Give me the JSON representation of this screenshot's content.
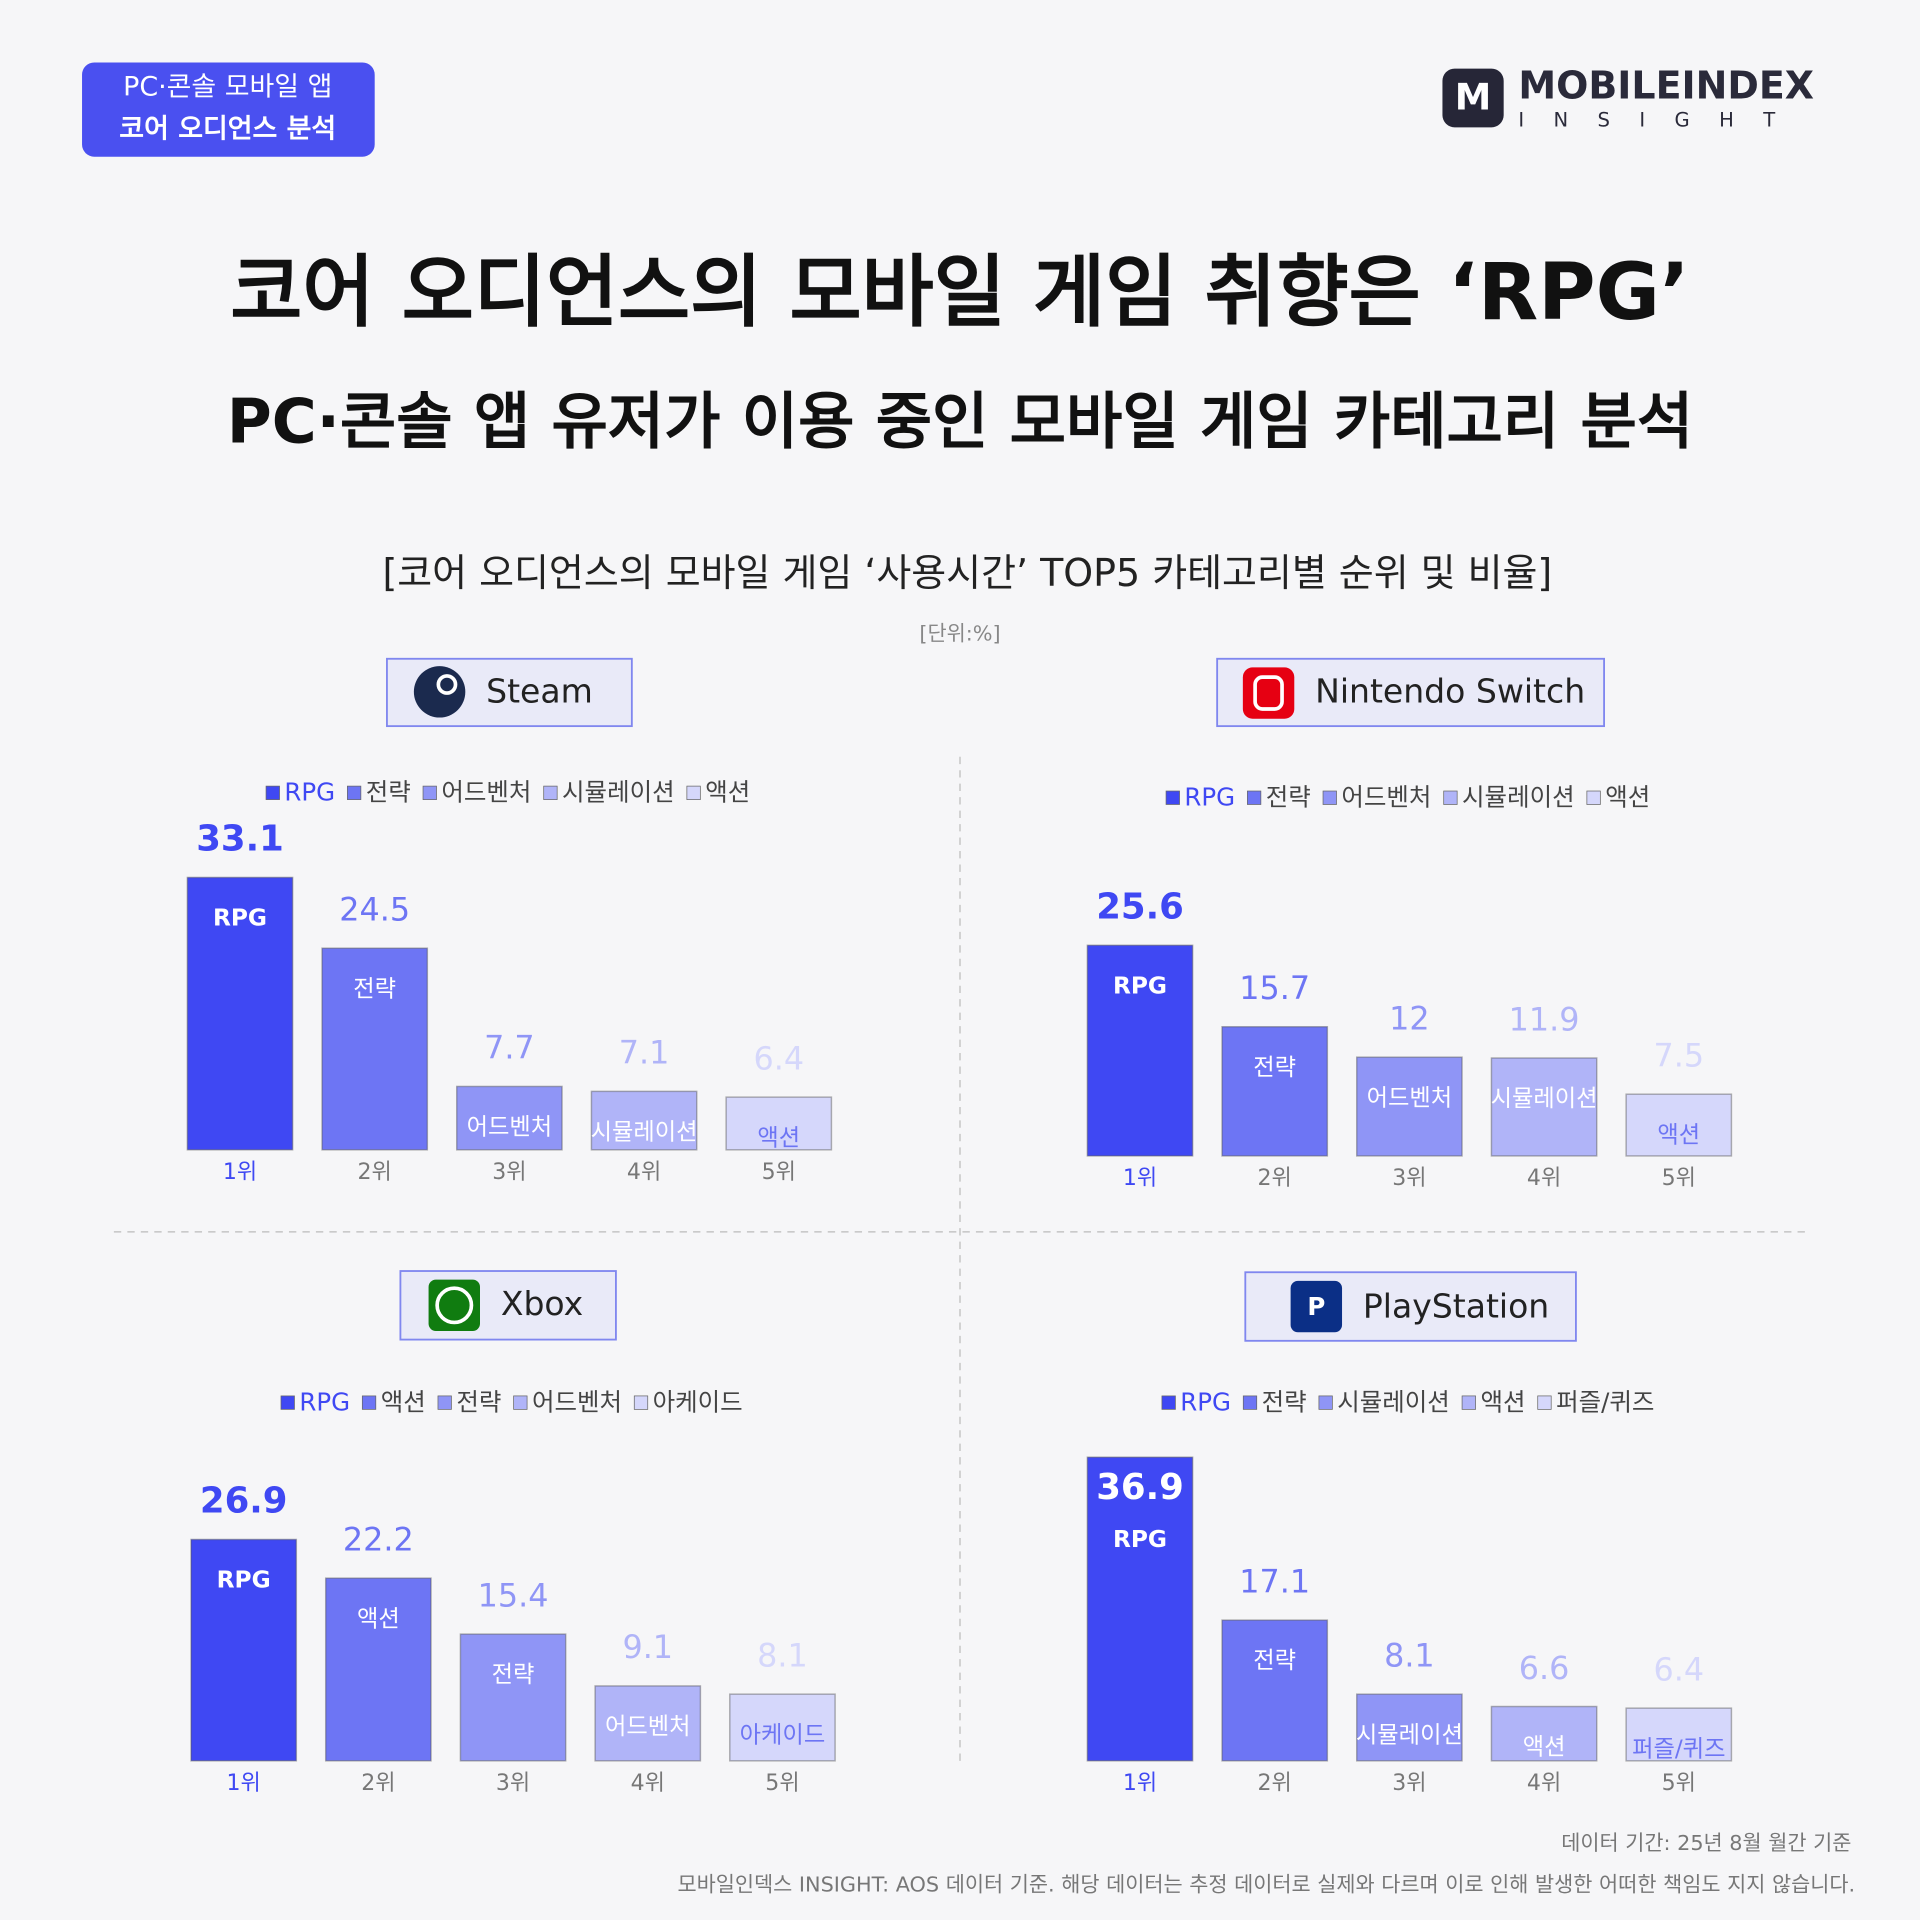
{
  "badge": [
    "PC·콘솔 모바일 앱",
    "코어 오디언스 분석"
  ],
  "logo": {
    "name": "MOBILEINDEX",
    "sub": "INSIGHT"
  },
  "title": "코어 오디언스의 모바일 게임 취향은 ‘RPG’",
  "subtitle": "PC·콘솔 앱 유저가 이용 중인 모바일 게임 카테고리 분석",
  "section_title": "[코어 오디언스의 모바일 게임 ‘사용시간’ TOP5 카테고리별 순위 및 비율]",
  "unit": "[단위:%]",
  "chart_data": [
    {
      "type": "bar",
      "title": "Steam",
      "categories": [
        "1위",
        "2위",
        "3위",
        "4위",
        "5위"
      ],
      "bar_labels": [
        "RPG",
        "전략",
        "어드벤처",
        "시뮬레이션",
        "액션"
      ],
      "values": [
        33.1,
        24.5,
        7.7,
        7.1,
        6.4
      ],
      "colors": [
        "#3f48f3",
        "#6d75f4",
        "#8f95f6",
        "#b0b4f8",
        "#d5d7fb"
      ]
    },
    {
      "type": "bar",
      "title": "Nintendo Switch",
      "categories": [
        "1위",
        "2위",
        "3위",
        "4위",
        "5위"
      ],
      "bar_labels": [
        "RPG",
        "전략",
        "어드벤처",
        "시뮬레이션",
        "액션"
      ],
      "values": [
        25.6,
        15.7,
        12,
        11.9,
        7.5
      ],
      "colors": [
        "#3f48f3",
        "#6d75f4",
        "#8f95f6",
        "#b0b4f8",
        "#d5d7fb"
      ]
    },
    {
      "type": "bar",
      "title": "Xbox",
      "categories": [
        "1위",
        "2위",
        "3위",
        "4위",
        "5위"
      ],
      "bar_labels": [
        "RPG",
        "액션",
        "전략",
        "어드벤처",
        "아케이드"
      ],
      "values": [
        26.9,
        22.2,
        15.4,
        9.1,
        8.1
      ],
      "colors": [
        "#3f48f3",
        "#6d75f4",
        "#8f95f6",
        "#b0b4f8",
        "#d5d7fb"
      ]
    },
    {
      "type": "bar",
      "title": "PlayStation",
      "categories": [
        "1위",
        "2위",
        "3위",
        "4위",
        "5위"
      ],
      "bar_labels": [
        "RPG",
        "전략",
        "시뮬레이션",
        "액션",
        "퍼즐/퀴즈"
      ],
      "values": [
        36.9,
        17.1,
        8.1,
        6.6,
        6.4
      ],
      "colors": [
        "#3f48f3",
        "#6d75f4",
        "#8f95f6",
        "#b0b4f8",
        "#d5d7fb"
      ]
    }
  ],
  "footer": [
    "데이터 기간: 25년 8월 월간 기준",
    "모바일인덱스 INSIGHT: AOS 데이터 기준. 해당 데이터는 추정 데이터로 실제와 다르며 이로 인해 발생한 어떠한 책임도 지지 않습니다."
  ]
}
